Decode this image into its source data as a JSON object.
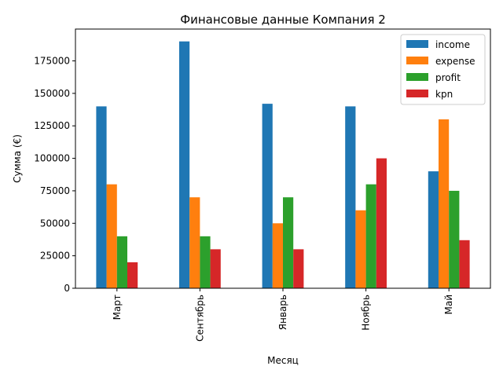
{
  "chart_data": {
    "type": "bar",
    "title": "Финансовые данные Компания 2",
    "xlabel": "Месяц",
    "ylabel": "Сумма (€)",
    "categories": [
      "Март",
      "Сентябрь",
      "Январь",
      "Ноябрь",
      "Май"
    ],
    "series": [
      {
        "name": "income",
        "color": "#1f77b4",
        "values": [
          140000,
          190000,
          142000,
          140000,
          90000
        ]
      },
      {
        "name": "expense",
        "color": "#ff7f0e",
        "values": [
          80000,
          70000,
          50000,
          60000,
          130000
        ]
      },
      {
        "name": "profit",
        "color": "#2ca02c",
        "values": [
          40000,
          40000,
          70000,
          80000,
          75000
        ]
      },
      {
        "name": "kpn",
        "color": "#d62728",
        "values": [
          20000,
          30000,
          30000,
          100000,
          37000
        ]
      }
    ],
    "ylim": [
      0,
      199500
    ],
    "yticks": [
      0,
      25000,
      50000,
      75000,
      100000,
      125000,
      150000,
      175000
    ],
    "grid": false,
    "legend_position": "top-right"
  }
}
